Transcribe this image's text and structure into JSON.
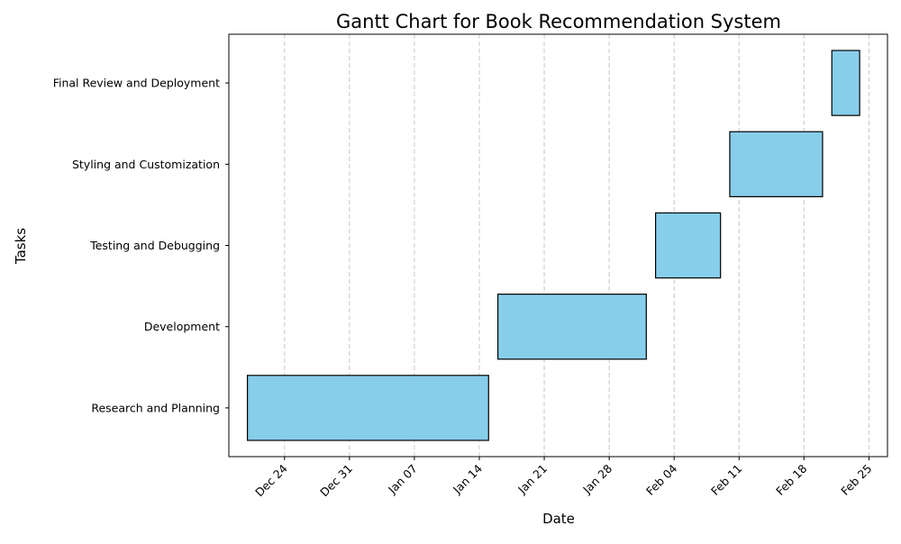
{
  "chart_data": {
    "type": "gantt",
    "title": "Gantt Chart for Book Recommendation System",
    "xlabel": "Date",
    "ylabel": "Tasks",
    "xlim": [
      "2023-12-18",
      "2024-02-27"
    ],
    "x_ticks": [
      {
        "date": "2023-12-24",
        "label": "Dec 24"
      },
      {
        "date": "2023-12-31",
        "label": "Dec 31"
      },
      {
        "date": "2024-01-07",
        "label": "Jan 07"
      },
      {
        "date": "2024-01-14",
        "label": "Jan 14"
      },
      {
        "date": "2024-01-21",
        "label": "Jan 21"
      },
      {
        "date": "2024-01-28",
        "label": "Jan 28"
      },
      {
        "date": "2024-02-04",
        "label": "Feb 04"
      },
      {
        "date": "2024-02-11",
        "label": "Feb 11"
      },
      {
        "date": "2024-02-18",
        "label": "Feb 18"
      },
      {
        "date": "2024-02-25",
        "label": "Feb 25"
      }
    ],
    "tasks": [
      {
        "name": "Research and Planning",
        "start": "2023-12-20",
        "end": "2024-01-15"
      },
      {
        "name": "Development",
        "start": "2024-01-16",
        "end": "2024-02-01"
      },
      {
        "name": "Testing and Debugging",
        "start": "2024-02-02",
        "end": "2024-02-09"
      },
      {
        "name": "Styling and Customization",
        "start": "2024-02-10",
        "end": "2024-02-20"
      },
      {
        "name": "Final Review and Deployment",
        "start": "2024-02-21",
        "end": "2024-02-24"
      }
    ],
    "bar_color": "#87ceeb",
    "bar_edge_color": "#000000",
    "grid": "x-dashed",
    "legend": false
  }
}
